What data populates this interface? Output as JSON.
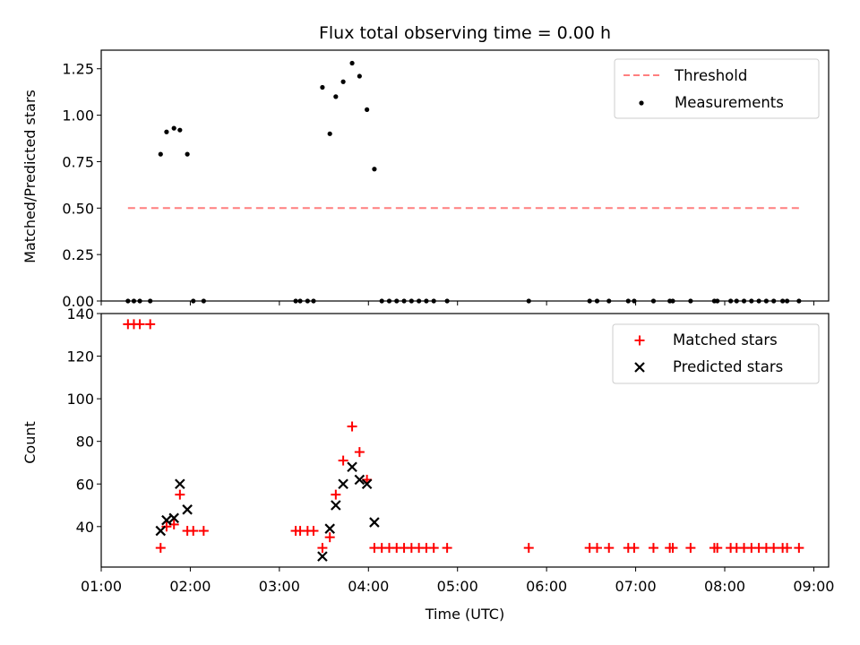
{
  "colors": {
    "threshold": "#ff7f7f",
    "measurements": "#000000",
    "matched": "#ff0000",
    "predicted": "#000000"
  },
  "chart_data": [
    {
      "type": "scatter",
      "title": "Flux total observing time = 0.00 h",
      "xlabel": "",
      "ylabel": "Matched/Predicted stars",
      "xlim": [
        "01:00",
        "09:10"
      ],
      "ylim": [
        0,
        1.35
      ],
      "yticks": [
        "0.00",
        "0.25",
        "0.50",
        "0.75",
        "1.00",
        "1.25"
      ],
      "grid": false,
      "legend_position": "top-right",
      "threshold": {
        "name": "Threshold",
        "style": "dashed",
        "y": 0.5,
        "x_start": "01:18",
        "x_end": "08:50"
      },
      "series": [
        {
          "name": "Measurements",
          "marker": "dot",
          "points": [
            [
              "01:18",
              0
            ],
            [
              "01:22",
              0
            ],
            [
              "01:26",
              0
            ],
            [
              "01:33",
              0
            ],
            [
              "01:40",
              0.79
            ],
            [
              "01:44",
              0.91
            ],
            [
              "01:49",
              0.93
            ],
            [
              "01:53",
              0.92
            ],
            [
              "01:58",
              0.79
            ],
            [
              "02:02",
              0
            ],
            [
              "02:09",
              0
            ],
            [
              "03:11",
              0
            ],
            [
              "03:14",
              0
            ],
            [
              "03:19",
              0
            ],
            [
              "03:23",
              0
            ],
            [
              "03:29",
              1.15
            ],
            [
              "03:34",
              0.9
            ],
            [
              "03:38",
              1.1
            ],
            [
              "03:43",
              1.18
            ],
            [
              "03:49",
              1.28
            ],
            [
              "03:54",
              1.21
            ],
            [
              "03:59",
              1.03
            ],
            [
              "04:04",
              0.71
            ],
            [
              "04:09",
              0
            ],
            [
              "04:14",
              0
            ],
            [
              "04:19",
              0
            ],
            [
              "04:24",
              0
            ],
            [
              "04:29",
              0
            ],
            [
              "04:34",
              0
            ],
            [
              "04:39",
              0
            ],
            [
              "04:44",
              0
            ],
            [
              "04:53",
              0
            ],
            [
              "05:48",
              0
            ],
            [
              "06:29",
              0
            ],
            [
              "06:34",
              0
            ],
            [
              "06:42",
              0
            ],
            [
              "06:55",
              0
            ],
            [
              "06:59",
              0
            ],
            [
              "07:12",
              0
            ],
            [
              "07:23",
              0
            ],
            [
              "07:25",
              0
            ],
            [
              "07:37",
              0
            ],
            [
              "07:53",
              0
            ],
            [
              "07:55",
              0
            ],
            [
              "08:04",
              0
            ],
            [
              "08:08",
              0
            ],
            [
              "08:13",
              0
            ],
            [
              "08:18",
              0
            ],
            [
              "08:23",
              0
            ],
            [
              "08:28",
              0
            ],
            [
              "08:33",
              0
            ],
            [
              "08:39",
              0
            ],
            [
              "08:42",
              0
            ],
            [
              "08:50",
              0
            ]
          ]
        }
      ]
    },
    {
      "type": "scatter",
      "title": "",
      "xlabel": "Time (UTC)",
      "ylabel": "Count",
      "xlim": [
        "01:00",
        "09:10"
      ],
      "ylim": [
        21,
        140
      ],
      "yticks": [
        "40",
        "60",
        "80",
        "100",
        "120",
        "140"
      ],
      "xticks": [
        "01:00",
        "02:00",
        "03:00",
        "04:00",
        "05:00",
        "06:00",
        "07:00",
        "08:00",
        "09:00"
      ],
      "grid": false,
      "legend_position": "top-right",
      "series": [
        {
          "name": "Matched stars",
          "marker": "plus",
          "points": [
            [
              "01:18",
              135
            ],
            [
              "01:22",
              135
            ],
            [
              "01:26",
              135
            ],
            [
              "01:33",
              135
            ],
            [
              "01:40",
              30
            ],
            [
              "01:44",
              40
            ],
            [
              "01:49",
              41
            ],
            [
              "01:53",
              55
            ],
            [
              "01:58",
              38
            ],
            [
              "02:02",
              38
            ],
            [
              "02:09",
              38
            ],
            [
              "03:11",
              38
            ],
            [
              "03:14",
              38
            ],
            [
              "03:19",
              38
            ],
            [
              "03:23",
              38
            ],
            [
              "03:29",
              30
            ],
            [
              "03:34",
              35
            ],
            [
              "03:38",
              55
            ],
            [
              "03:43",
              71
            ],
            [
              "03:49",
              87
            ],
            [
              "03:54",
              75
            ],
            [
              "03:59",
              62
            ],
            [
              "04:04",
              30
            ],
            [
              "04:09",
              30
            ],
            [
              "04:14",
              30
            ],
            [
              "04:19",
              30
            ],
            [
              "04:24",
              30
            ],
            [
              "04:29",
              30
            ],
            [
              "04:34",
              30
            ],
            [
              "04:39",
              30
            ],
            [
              "04:44",
              30
            ],
            [
              "04:53",
              30
            ],
            [
              "05:48",
              30
            ],
            [
              "06:29",
              30
            ],
            [
              "06:34",
              30
            ],
            [
              "06:42",
              30
            ],
            [
              "06:55",
              30
            ],
            [
              "06:59",
              30
            ],
            [
              "07:12",
              30
            ],
            [
              "07:23",
              30
            ],
            [
              "07:25",
              30
            ],
            [
              "07:37",
              30
            ],
            [
              "07:53",
              30
            ],
            [
              "07:55",
              30
            ],
            [
              "08:04",
              30
            ],
            [
              "08:08",
              30
            ],
            [
              "08:13",
              30
            ],
            [
              "08:18",
              30
            ],
            [
              "08:23",
              30
            ],
            [
              "08:28",
              30
            ],
            [
              "08:33",
              30
            ],
            [
              "08:39",
              30
            ],
            [
              "08:42",
              30
            ],
            [
              "08:50",
              30
            ]
          ]
        },
        {
          "name": "Predicted stars",
          "marker": "x",
          "points": [
            [
              "01:40",
              38
            ],
            [
              "01:44",
              43
            ],
            [
              "01:49",
              44
            ],
            [
              "01:53",
              60
            ],
            [
              "01:58",
              48
            ],
            [
              "03:29",
              26
            ],
            [
              "03:34",
              39
            ],
            [
              "03:38",
              50
            ],
            [
              "03:43",
              60
            ],
            [
              "03:49",
              68
            ],
            [
              "03:54",
              62
            ],
            [
              "03:59",
              60
            ],
            [
              "04:04",
              42
            ]
          ]
        }
      ]
    }
  ]
}
